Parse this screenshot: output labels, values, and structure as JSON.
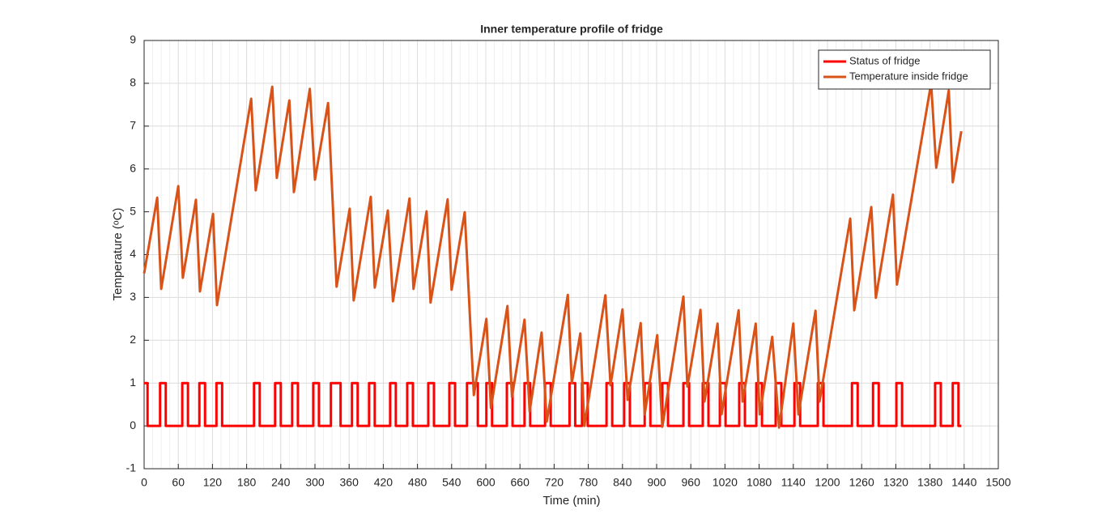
{
  "chart_data": {
    "type": "line",
    "title": "Inner temperature profile of fridge",
    "xlabel": "Time (min)",
    "ylabel": "Temperature (ᵒC)",
    "xlim": [
      0,
      1500
    ],
    "xticks": [
      0,
      60,
      120,
      180,
      240,
      300,
      360,
      420,
      480,
      540,
      600,
      660,
      720,
      780,
      840,
      900,
      960,
      1020,
      1080,
      1140,
      1200,
      1260,
      1320,
      1380,
      1440,
      1500
    ],
    "ylim": [
      -1,
      9
    ],
    "yticks": [
      -1,
      0,
      1,
      2,
      3,
      4,
      5,
      6,
      7,
      8,
      9
    ],
    "grid": true,
    "xminorgrid": true,
    "legend": "upper-right",
    "series": [
      {
        "name": "Status of fridge",
        "color": "#ff0000",
        "drawstyle": "steps-post",
        "x": [
          0,
          6,
          28,
          38,
          67,
          77,
          97,
          107,
          127,
          137,
          193,
          203,
          230,
          240,
          260,
          270,
          297,
          307,
          328,
          345,
          365,
          375,
          395,
          405,
          432,
          442,
          462,
          472,
          499,
          509,
          536,
          546,
          567,
          586,
          601,
          611,
          637,
          647,
          668,
          678,
          704,
          714,
          747,
          757,
          769,
          779,
          812,
          822,
          843,
          853,
          879,
          889,
          910,
          920,
          947,
          957,
          981,
          991,
          1011,
          1021,
          1045,
          1055,
          1075,
          1085,
          1109,
          1119,
          1142,
          1152,
          1183,
          1193,
          1243,
          1253,
          1280,
          1290,
          1321,
          1331,
          1389,
          1399,
          1420,
          1430,
          1435
        ],
        "values": [
          1,
          0,
          1,
          0,
          1,
          0,
          1,
          0,
          1,
          0,
          1,
          0,
          1,
          0,
          1,
          0,
          1,
          0,
          1,
          0,
          1,
          0,
          1,
          0,
          1,
          0,
          1,
          0,
          1,
          0,
          1,
          0,
          1,
          0,
          1,
          0,
          1,
          0,
          1,
          0,
          1,
          0,
          1,
          0,
          1,
          0,
          1,
          0,
          1,
          0,
          1,
          0,
          1,
          0,
          1,
          0,
          1,
          0,
          1,
          0,
          1,
          0,
          1,
          0,
          1,
          0,
          1,
          0,
          1,
          0,
          1,
          0,
          1,
          0,
          1,
          0,
          1,
          0,
          1,
          0,
          0
        ]
      },
      {
        "name": "Temperature inside fridge",
        "color": "#d95319",
        "drawstyle": "default",
        "x": [
          0,
          23,
          30,
          60,
          68,
          91,
          98,
          121,
          128,
          188,
          196,
          225,
          233,
          255,
          263,
          291,
          300,
          323,
          338,
          361,
          368,
          398,
          405,
          428,
          437,
          466,
          473,
          496,
          503,
          533,
          540,
          563,
          579,
          601,
          609,
          638,
          646,
          668,
          677,
          698,
          707,
          744,
          751,
          766,
          773,
          810,
          819,
          840,
          849,
          872,
          879,
          901,
          910,
          947,
          954,
          977,
          984,
          1007,
          1014,
          1044,
          1051,
          1074,
          1081,
          1103,
          1115,
          1140,
          1149,
          1179,
          1186,
          1240,
          1247,
          1277,
          1285,
          1315,
          1322,
          1382,
          1391,
          1413,
          1420,
          1435
        ],
        "values": [
          3.56,
          5.33,
          3.2,
          5.6,
          3.46,
          5.28,
          3.14,
          4.95,
          2.82,
          7.64,
          5.5,
          7.92,
          5.79,
          7.6,
          5.46,
          7.87,
          5.75,
          7.54,
          3.25,
          5.07,
          2.93,
          5.35,
          3.23,
          5.03,
          2.91,
          5.31,
          3.2,
          5.01,
          2.88,
          5.29,
          3.18,
          4.99,
          0.72,
          2.5,
          0.42,
          2.8,
          0.68,
          2.48,
          0.34,
          2.18,
          0.1,
          3.06,
          1.0,
          2.16,
          0.0,
          3.05,
          0.95,
          2.72,
          0.61,
          2.4,
          0.27,
          2.12,
          -0.02,
          3.02,
          0.92,
          2.71,
          0.57,
          2.39,
          0.27,
          2.7,
          0.57,
          2.39,
          0.27,
          2.08,
          -0.04,
          2.39,
          0.27,
          2.69,
          0.57,
          4.84,
          2.7,
          5.11,
          2.99,
          5.4,
          3.3,
          8.0,
          6.03,
          7.83,
          5.69,
          6.88
        ]
      }
    ]
  }
}
